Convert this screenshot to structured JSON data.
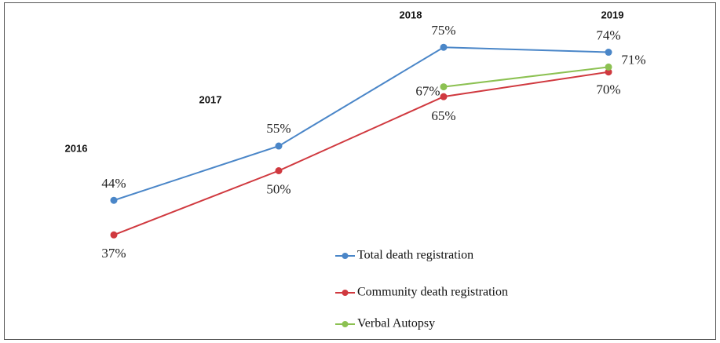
{
  "chart_data": {
    "type": "line",
    "categories": [
      "2016",
      "2017",
      "2018",
      "2019"
    ],
    "series": [
      {
        "name": "Total death registration",
        "color": "#4a86c8",
        "values": [
          44,
          55,
          75,
          74
        ],
        "value_labels": [
          "44%",
          "55%",
          "75%",
          "74%"
        ]
      },
      {
        "name": "Community death registration",
        "color": "#d0393f",
        "values": [
          37,
          50,
          65,
          70
        ],
        "value_labels": [
          "37%",
          "50%",
          "65%",
          "70%"
        ]
      },
      {
        "name": "Verbal Autopsy",
        "color": "#8cc152",
        "values": [
          null,
          null,
          67,
          71
        ],
        "value_labels": [
          null,
          null,
          "67%",
          "71%"
        ]
      }
    ]
  }
}
